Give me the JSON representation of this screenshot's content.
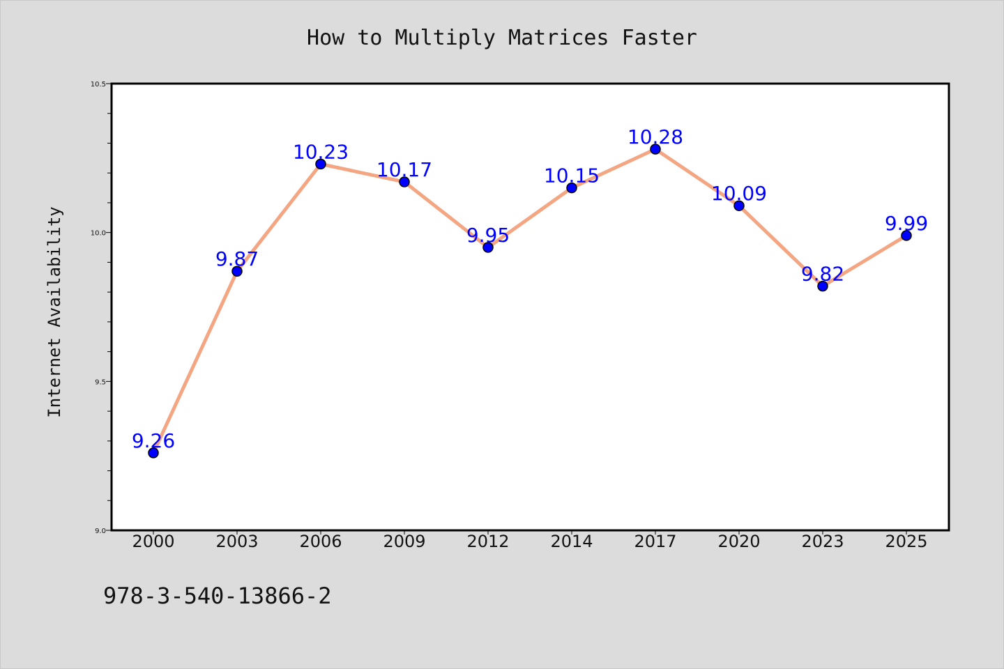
{
  "chart_data": {
    "type": "line",
    "title": "How to Multiply Matrices Faster",
    "xlabel": "",
    "ylabel": "Internet Availability",
    "categories": [
      "2000",
      "2003",
      "2006",
      "2009",
      "2012",
      "2014",
      "2017",
      "2020",
      "2023",
      "2025"
    ],
    "series": [
      {
        "values": [
          9.26,
          9.87,
          10.23,
          10.17,
          9.95,
          10.15,
          10.28,
          10.09,
          9.82,
          9.99
        ],
        "data_labels": [
          "9.26",
          "9.87",
          "10.23",
          "10.17",
          "9.95",
          "10.15",
          "10.28",
          "10.09",
          "9.82",
          "9.99"
        ]
      }
    ],
    "ylim": [
      9.0,
      10.5
    ],
    "yticks": [
      "9.0",
      "9.5",
      "10.0",
      "10.5"
    ],
    "grid": false,
    "line_color": "#f4a582",
    "marker_color": "#0000ff",
    "label_color": "#0000ff"
  },
  "footer": {
    "text": "978-3-540-13866-2"
  },
  "colors": {
    "background": "#dcdcdc",
    "plot_background": "#ffffff"
  }
}
